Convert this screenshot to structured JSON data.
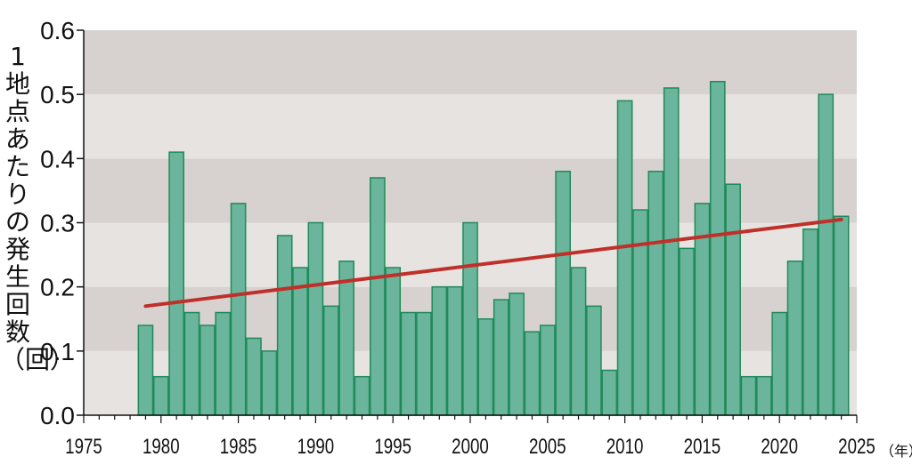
{
  "chart_data": {
    "type": "bar",
    "ylabel": "1地点あたりの発生回数（回）",
    "xunit": "（年）",
    "xlim": [
      1975,
      2025
    ],
    "ylim": [
      0,
      0.6
    ],
    "x_ticks": [
      "1975",
      "1980",
      "1985",
      "1990",
      "1995",
      "2000",
      "2005",
      "2010",
      "2015",
      "2020",
      "2025"
    ],
    "y_ticks": [
      "0.0",
      "0.1",
      "0.2",
      "0.3",
      "0.4",
      "0.5",
      "0.6"
    ],
    "grid": "alternating horizontal bands",
    "categories": [
      1979,
      1980,
      1981,
      1982,
      1983,
      1984,
      1985,
      1986,
      1987,
      1988,
      1989,
      1990,
      1991,
      1992,
      1993,
      1994,
      1995,
      1996,
      1997,
      1998,
      1999,
      2000,
      2001,
      2002,
      2003,
      2004,
      2005,
      2006,
      2007,
      2008,
      2009,
      2010,
      2011,
      2012,
      2013,
      2014,
      2015,
      2016,
      2017,
      2018,
      2019,
      2020,
      2021,
      2022,
      2023,
      2024
    ],
    "values": [
      0.14,
      0.06,
      0.41,
      0.16,
      0.14,
      0.16,
      0.33,
      0.12,
      0.1,
      0.28,
      0.23,
      0.3,
      0.17,
      0.24,
      0.06,
      0.37,
      0.23,
      0.16,
      0.16,
      0.2,
      0.2,
      0.3,
      0.15,
      0.18,
      0.19,
      0.13,
      0.14,
      0.38,
      0.23,
      0.17,
      0.07,
      0.49,
      0.32,
      0.38,
      0.51,
      0.26,
      0.33,
      0.52,
      0.36,
      0.06,
      0.06,
      0.16,
      0.24,
      0.29,
      0.5,
      0.31
    ],
    "trend": {
      "x": [
        1979,
        2024
      ],
      "y": [
        0.17,
        0.305
      ]
    },
    "colors": {
      "bar": "#6ab59b",
      "bar_edge": "#1f8a5c",
      "trend": "#c0302a",
      "band_light": "#e7e3e0",
      "band_dark": "#d7d2cf"
    }
  }
}
